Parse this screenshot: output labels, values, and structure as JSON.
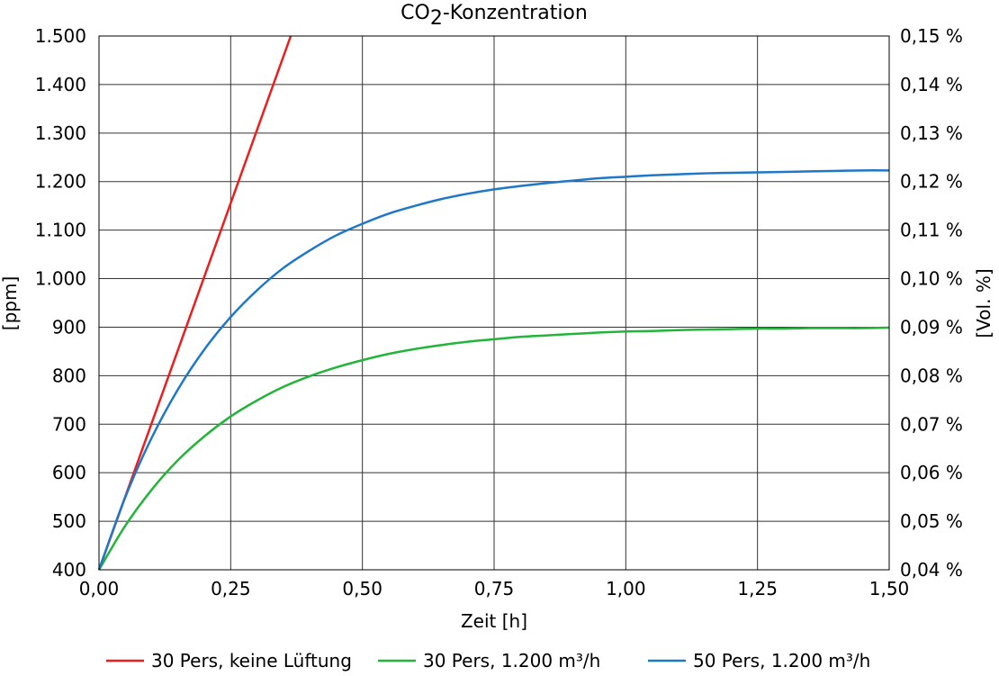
{
  "chart_data": {
    "type": "line",
    "title": {
      "main": "CO",
      "subscript": "2",
      "rest": "-Konzentration"
    },
    "xlabel": "Zeit [h]",
    "ylabel": "[ppm]",
    "y2label": "[Vol. %]",
    "xlim": [
      0,
      1.5
    ],
    "ylim": [
      400,
      1500
    ],
    "grid": true,
    "legend_placement": "bottom",
    "x_ticks": [
      0,
      0.25,
      0.5,
      0.75,
      1.0,
      1.25,
      1.5
    ],
    "x_tick_labels": [
      "0,00",
      "0,25",
      "0,50",
      "0,75",
      "1,00",
      "1,25",
      "1,50"
    ],
    "y_ticks": [
      400,
      500,
      600,
      700,
      800,
      900,
      1000,
      1100,
      1200,
      1300,
      1400,
      1500
    ],
    "y_tick_labels": [
      "400",
      "500",
      "600",
      "700",
      "800",
      "900",
      "1.000",
      "1.100",
      "1.200",
      "1.300",
      "1.400",
      "1.500"
    ],
    "y2_tick_labels": [
      "0,04 %",
      "0,05 %",
      "0,06 %",
      "0,07 %",
      "0,08 %",
      "0,09 %",
      "0,10 %",
      "0,11 %",
      "0,12 %",
      "0,13 %",
      "0,14 %",
      "0,15 %"
    ],
    "series": [
      {
        "name": "30 Pers, keine Lüftung",
        "color": "#ee1c1c",
        "x": [
          0,
          0.364
        ],
        "y": [
          400,
          1500
        ]
      },
      {
        "name": "30 Pers, 1.200 m³/h",
        "color": "#22b53a",
        "x": [
          0,
          0.05,
          0.1,
          0.15,
          0.2,
          0.25,
          0.3,
          0.35,
          0.4,
          0.45,
          0.5,
          0.55,
          0.6,
          0.65,
          0.7,
          0.75,
          0.8,
          0.85,
          0.9,
          0.95,
          1.0,
          1.05,
          1.1,
          1.15,
          1.2,
          1.25,
          1.3,
          1.35,
          1.4,
          1.45,
          1.5
        ],
        "y": [
          400,
          491,
          565,
          626,
          675,
          716,
          749,
          777,
          799,
          817,
          832,
          845,
          855,
          863,
          870,
          875,
          880,
          883,
          886,
          889,
          891,
          892,
          894,
          895,
          896,
          897,
          897,
          898,
          898,
          898,
          899
        ]
      },
      {
        "name": "50 Pers, 1.200 m³/h",
        "color": "#1f77c8",
        "x": [
          0,
          0.05,
          0.1,
          0.15,
          0.2,
          0.25,
          0.3,
          0.35,
          0.4,
          0.45,
          0.5,
          0.55,
          0.6,
          0.65,
          0.7,
          0.75,
          0.8,
          0.85,
          0.9,
          0.95,
          1.0,
          1.05,
          1.1,
          1.15,
          1.2,
          1.25,
          1.3,
          1.35,
          1.4,
          1.45,
          1.5
        ],
        "y": [
          400,
          550,
          672,
          772,
          854,
          921,
          976,
          1022,
          1058,
          1089,
          1113,
          1134,
          1150,
          1164,
          1175,
          1184,
          1191,
          1197,
          1202,
          1207,
          1210,
          1213,
          1215,
          1217,
          1218,
          1219,
          1220,
          1221,
          1222,
          1223,
          1223
        ]
      }
    ]
  }
}
